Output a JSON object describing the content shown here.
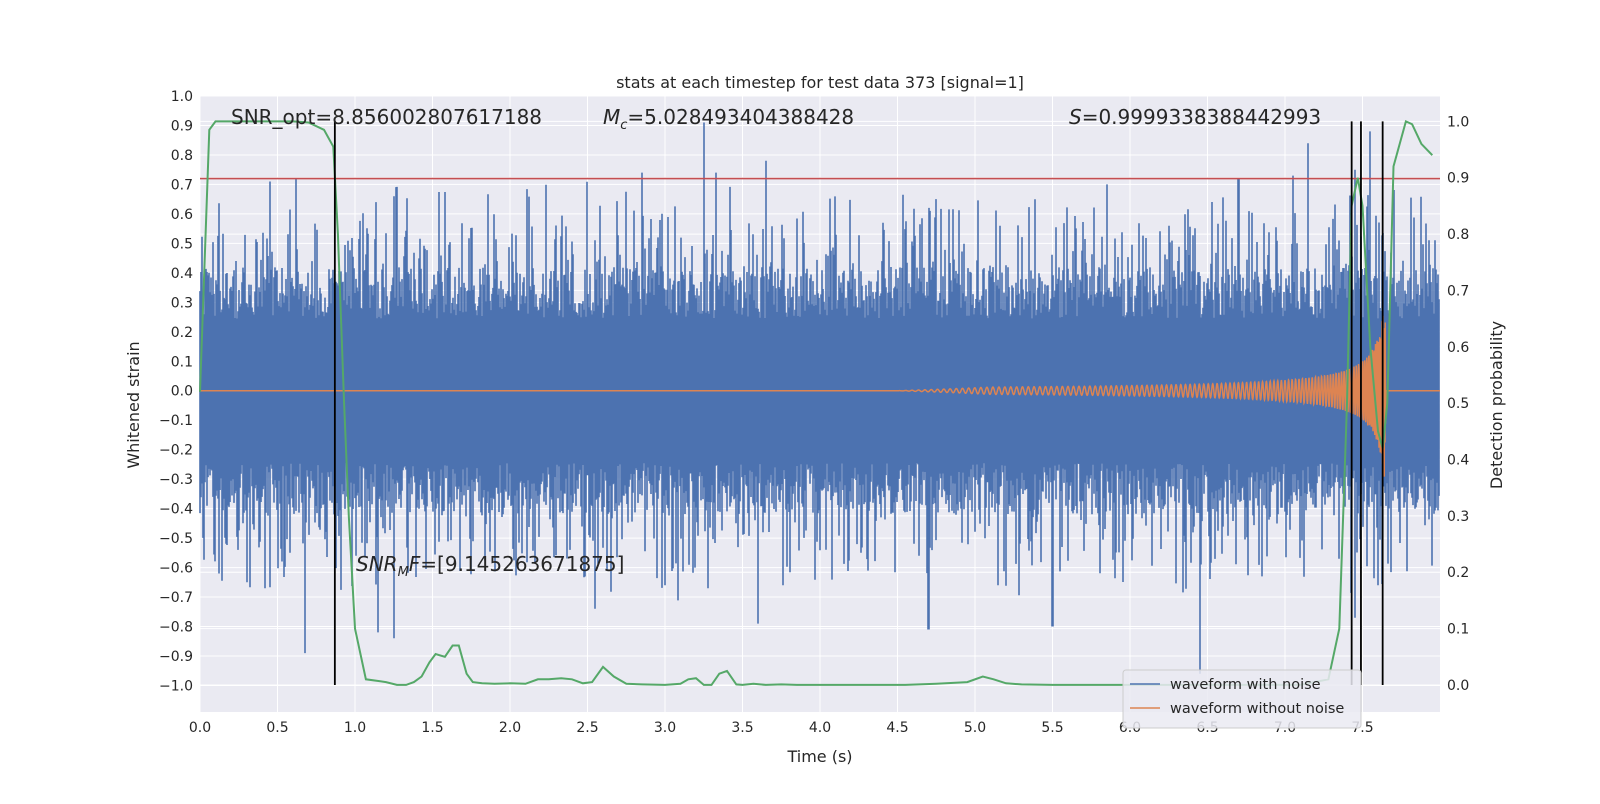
{
  "chart_data": {
    "type": "line",
    "title": "stats at each timestep for test data 373 [signal=1]",
    "xlabel": "Time (s)",
    "ylabel_left": "Whitened strain",
    "ylabel_right": "Detection probability",
    "xlim": [
      0.0,
      8.0
    ],
    "ylim_left": [
      -1.09,
      1.0
    ],
    "ylim_right": [
      -0.048,
      1.045
    ],
    "x_ticks": [
      "0.0",
      "0.5",
      "1.0",
      "1.5",
      "2.0",
      "2.5",
      "3.0",
      "3.5",
      "4.0",
      "4.5",
      "5.0",
      "5.5",
      "6.0",
      "6.5",
      "7.0",
      "7.5"
    ],
    "y_left_ticks": [
      "1.0",
      "0.9",
      "0.8",
      "0.7",
      "0.6",
      "0.5",
      "0.4",
      "0.3",
      "0.2",
      "0.1",
      "0.0",
      "−0.1",
      "−0.2",
      "−0.3",
      "−0.4",
      "−0.5",
      "−0.6",
      "−0.7",
      "−0.8",
      "−0.9",
      "−1.0"
    ],
    "y_right_ticks": [
      "1.0",
      "0.9",
      "0.8",
      "0.7",
      "0.6",
      "0.5",
      "0.4",
      "0.3",
      "0.2",
      "0.1",
      "0.0"
    ],
    "grid": true,
    "legend_location": "lower-right",
    "annotations": {
      "snr_opt": "SNR_opt=8.856002807617188",
      "mc_symbol": "M",
      "mc_sub": "c",
      "mc_value": "=5.028493404388428",
      "s_symbol": "S",
      "s_value": "=0.9999338388442993",
      "snr_mf_symbol": "SNR",
      "snr_mf_sub": "M",
      "snr_mf_sym2": "F",
      "snr_mf_value": "=[9.145263671875]"
    },
    "series": [
      {
        "name": "waveform with noise",
        "color": "#4c72b0",
        "typical_amplitude": 0.35,
        "peaks_pos": [
          [
            0.45,
            0.71
          ],
          [
            0.62,
            0.72
          ],
          [
            1.25,
            0.66
          ],
          [
            2.85,
            0.74
          ],
          [
            3.25,
            0.91
          ],
          [
            3.33,
            0.74
          ],
          [
            3.65,
            0.78
          ],
          [
            5.85,
            0.7
          ],
          [
            6.7,
            0.72
          ],
          [
            7.05,
            0.73
          ],
          [
            7.15,
            0.84
          ],
          [
            7.45,
            0.75
          ],
          [
            7.55,
            0.88
          ]
        ],
        "peaks_neg": [
          [
            0.12,
            -0.62
          ],
          [
            0.42,
            -0.67
          ],
          [
            0.68,
            -0.89
          ],
          [
            1.15,
            -0.82
          ],
          [
            1.25,
            -0.84
          ],
          [
            2.55,
            -0.74
          ],
          [
            3.0,
            -0.66
          ],
          [
            3.6,
            -0.79
          ],
          [
            4.7,
            -0.81
          ],
          [
            5.15,
            -0.66
          ],
          [
            5.5,
            -0.8
          ],
          [
            6.45,
            -0.96
          ],
          [
            6.85,
            -0.63
          ],
          [
            7.45,
            -0.77
          ],
          [
            7.6,
            -0.66
          ]
        ]
      },
      {
        "name": "waveform without noise",
        "color": "#dd8452",
        "chirp_start": 4.5,
        "merger_time": 7.65,
        "peak_amplitude": 0.35
      },
      {
        "name": "detection probability",
        "color": "#55a868",
        "x": [
          0.0,
          0.06,
          0.1,
          0.2,
          0.4,
          0.6,
          0.7,
          0.8,
          0.86,
          0.89,
          0.93,
          0.96,
          1.0,
          1.07,
          1.2,
          1.27,
          1.33,
          1.38,
          1.43,
          1.48,
          1.52,
          1.58,
          1.63,
          1.67,
          1.72,
          1.76,
          1.82,
          1.9,
          2.0,
          2.1,
          2.18,
          2.25,
          2.33,
          2.4,
          2.47,
          2.53,
          2.6,
          2.67,
          2.75,
          2.85,
          3.0,
          3.1,
          3.15,
          3.2,
          3.25,
          3.3,
          3.35,
          3.4,
          3.46,
          3.5,
          3.57,
          3.65,
          3.75,
          3.85,
          4.0,
          4.1,
          4.2,
          4.35,
          4.55,
          4.75,
          4.95,
          5.05,
          5.12,
          5.2,
          5.3,
          5.5,
          5.75,
          6.0,
          6.3,
          6.6,
          6.9,
          7.1,
          7.28,
          7.35,
          7.4,
          7.43,
          7.47,
          7.5,
          7.55,
          7.6,
          7.63,
          7.66,
          7.7,
          7.74,
          7.78,
          7.82,
          7.88,
          7.95
        ],
        "y": [
          0.52,
          0.985,
          1.0,
          1.0,
          1.0,
          1.0,
          0.998,
          0.985,
          0.955,
          0.8,
          0.5,
          0.3,
          0.1,
          0.01,
          0.005,
          0.0,
          0.0,
          0.005,
          0.015,
          0.04,
          0.055,
          0.05,
          0.07,
          0.07,
          0.02,
          0.005,
          0.003,
          0.002,
          0.003,
          0.002,
          0.01,
          0.01,
          0.012,
          0.01,
          0.003,
          0.005,
          0.032,
          0.015,
          0.002,
          0.001,
          0.0,
          0.002,
          0.01,
          0.012,
          0.0,
          0.0,
          0.02,
          0.025,
          0.001,
          0.0,
          0.002,
          0.0,
          0.001,
          0.0,
          0.0,
          0.0,
          0.0,
          0.0,
          0.0,
          0.002,
          0.005,
          0.015,
          0.01,
          0.003,
          0.001,
          0.0,
          0.0,
          0.0,
          0.0,
          0.0,
          0.0,
          0.0,
          0.01,
          0.1,
          0.5,
          0.85,
          0.9,
          0.85,
          0.6,
          0.45,
          0.42,
          0.5,
          0.92,
          0.96,
          1.0,
          0.995,
          0.96,
          0.94
        ]
      }
    ],
    "threshold": {
      "value_left": 0.72,
      "color": "#c44e52"
    },
    "vertical_lines": [
      0.87,
      7.43,
      7.49,
      7.63
    ]
  }
}
